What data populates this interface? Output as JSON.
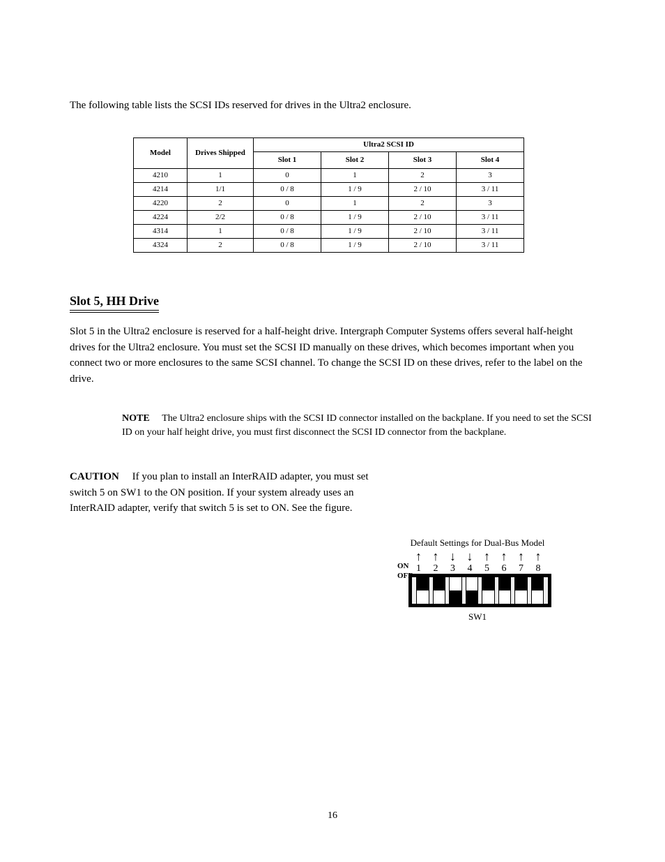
{
  "intro": "The following table lists the SCSI IDs reserved for drives in the Ultra2 enclosure.",
  "table": {
    "columns": [
      "Model",
      "Drives Shipped",
      "Slot 1",
      "Slot 2",
      "Slot 3",
      "Slot 4"
    ],
    "span_header": "Ultra2 SCSI ID",
    "rows": [
      [
        "4210",
        "1",
        "0",
        "1",
        "2",
        "3"
      ],
      [
        "4214",
        "1/1",
        "0 / 8",
        "1 / 9",
        "2 / 10",
        "3 / 11"
      ],
      [
        "4220",
        "2",
        "0",
        "1",
        "2",
        "3"
      ],
      [
        "4224",
        "2/2",
        "0 / 8",
        "1 / 9",
        "2 / 10",
        "3 / 11"
      ],
      [
        "4314",
        "1",
        "0 / 8",
        "1 / 9",
        "2 / 10",
        "3 / 11"
      ],
      [
        "4324",
        "2",
        "0 / 8",
        "1 / 9",
        "2 / 10",
        "3 / 11"
      ]
    ]
  },
  "section_title": "Slot 5, HH Drive",
  "para1": "Slot 5 in the Ultra2 enclosure is reserved for a half-height drive. Intergraph Computer Systems offers several half-height drives for the Ultra2 enclosure. You must set the SCSI ID manually on these drives, which becomes important when you connect two or more enclosures to the same SCSI channel. To change the SCSI ID on these drives, refer to the label on the drive.",
  "note_label": "NOTE",
  "note_body": "The Ultra2 enclosure ships with the SCSI ID connector installed on the backplane. If you need to set the SCSI ID on your half height drive, you must first disconnect the SCSI ID connector from the backplane.",
  "caution_label": "CAUTION",
  "caution_body": "If you plan to install an InterRAID adapter, you must set switch 5 on SW1 to the ON position. If your system already uses an InterRAID adapter, verify that switch 5 is set to ON. See the figure.",
  "dip": {
    "arrows": [
      "↑",
      "↑",
      "↓",
      "↓",
      "↑",
      "↑",
      "↑",
      "↑"
    ],
    "numbers": [
      "1",
      "2",
      "3",
      "4",
      "5",
      "6",
      "7",
      "8"
    ],
    "states": [
      "on",
      "on",
      "off",
      "off",
      "on",
      "on",
      "on",
      "on"
    ],
    "label_top": "Default Settings for Dual-Bus Model",
    "on": "ON",
    "off": "OFF",
    "fig": "SW1"
  },
  "page": "16"
}
